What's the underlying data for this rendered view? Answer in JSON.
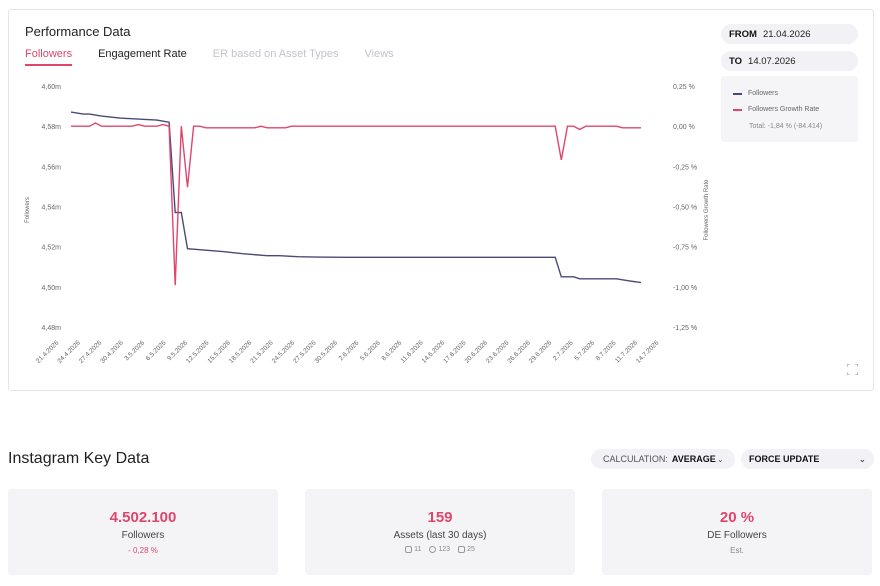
{
  "performance": {
    "title": "Performance Data",
    "tabs": [
      {
        "label": "Followers",
        "state": "active"
      },
      {
        "label": "Engagement Rate",
        "state": "dark"
      },
      {
        "label": "ER based on Asset Types",
        "state": "muted"
      },
      {
        "label": "Views",
        "state": "muted"
      }
    ],
    "from_label": "FROM",
    "from_value": "21.04.2026",
    "to_label": "TO",
    "to_value": "14.07.2026",
    "legend": {
      "followers": "Followers",
      "growth": "Followers Growth Rate",
      "total": "Total: -1,84 % (-84.414)"
    }
  },
  "chart_data": {
    "type": "line",
    "ylabel": "Followers",
    "y2label": "Followers Growth Rate",
    "x_ticks": [
      "21.4.2026",
      "24.4.2026",
      "27.4.2026",
      "30.4.2026",
      "3.5.2026",
      "6.5.2026",
      "9.5.2026",
      "12.5.2026",
      "15.5.2026",
      "18.5.2026",
      "21.5.2026",
      "24.5.2026",
      "27.5.2026",
      "30.5.2026",
      "2.6.2026",
      "5.6.2026",
      "8.6.2026",
      "11.6.2026",
      "14.6.2026",
      "17.6.2026",
      "20.6.2026",
      "23.6.2026",
      "26.6.2026",
      "29.6.2026",
      "2.7.2026",
      "5.7.2026",
      "8.7.2026",
      "11.7.2026",
      "14.7.2026"
    ],
    "y_ticks": [
      "4,60m",
      "4,58m",
      "4,56m",
      "4,54m",
      "4,52m",
      "4,50m",
      "4,48m"
    ],
    "y2_ticks": [
      "0,25 %",
      "0,00 %",
      "-0,25 %",
      "-0,50 %",
      "-0,75 %",
      "-1,00 %",
      "-1,25 %"
    ],
    "ylim": [
      4480000,
      4600000
    ],
    "y2lim": [
      -1.25,
      0.25
    ],
    "colors": {
      "followers": "#4a4a78",
      "growth": "#e0456c"
    },
    "series": [
      {
        "name": "Followers",
        "axis": "left",
        "points": [
          [
            0,
            4587000
          ],
          [
            2,
            4586000
          ],
          [
            3,
            4586000
          ],
          [
            5,
            4585000
          ],
          [
            8,
            4584000
          ],
          [
            11,
            4583500
          ],
          [
            14,
            4583000
          ],
          [
            16,
            4582000
          ],
          [
            17,
            4537000
          ],
          [
            18,
            4537000
          ],
          [
            19,
            4519000
          ],
          [
            21,
            4518500
          ],
          [
            25,
            4517500
          ],
          [
            28,
            4516500
          ],
          [
            32,
            4515500
          ],
          [
            34,
            4515500
          ],
          [
            37,
            4515000
          ],
          [
            40,
            4514800
          ],
          [
            45,
            4514700
          ],
          [
            50,
            4514700
          ],
          [
            60,
            4514700
          ],
          [
            70,
            4514700
          ],
          [
            79,
            4514700
          ],
          [
            80,
            4505000
          ],
          [
            82,
            4505000
          ],
          [
            83,
            4504000
          ],
          [
            86,
            4504000
          ],
          [
            89,
            4504000
          ],
          [
            91,
            4503000
          ],
          [
            93,
            4502100
          ]
        ]
      },
      {
        "name": "Followers Growth Rate",
        "axis": "right",
        "points": [
          [
            0,
            0
          ],
          [
            3,
            0
          ],
          [
            4,
            0.02
          ],
          [
            5,
            0
          ],
          [
            8,
            0
          ],
          [
            10,
            0
          ],
          [
            11,
            0.01
          ],
          [
            12,
            0
          ],
          [
            14,
            0
          ],
          [
            15,
            0.01
          ],
          [
            16,
            0
          ],
          [
            17,
            -0.99
          ],
          [
            18,
            0
          ],
          [
            19,
            -0.38
          ],
          [
            20,
            0
          ],
          [
            21,
            0
          ],
          [
            22,
            -0.01
          ],
          [
            30,
            -0.01
          ],
          [
            31,
            0
          ],
          [
            32,
            -0.01
          ],
          [
            35,
            -0.01
          ],
          [
            36,
            0
          ],
          [
            50,
            0
          ],
          [
            60,
            0
          ],
          [
            70,
            0
          ],
          [
            79,
            0
          ],
          [
            80,
            -0.21
          ],
          [
            81,
            0
          ],
          [
            82,
            0
          ],
          [
            83,
            -0.02
          ],
          [
            84,
            0
          ],
          [
            88,
            0
          ],
          [
            89,
            0
          ],
          [
            90,
            -0.01
          ],
          [
            93,
            -0.01
          ]
        ]
      }
    ]
  },
  "key_data": {
    "title": "Instagram Key Data",
    "calc_label": "CALCULATION:",
    "calc_value": "AVERAGE",
    "force_update": "FORCE UPDATE",
    "cards": [
      {
        "value": "4.502.100",
        "label": "Followers",
        "sub": "- 0,28 %"
      },
      {
        "value": "159",
        "label": "Assets (last 30 days)",
        "counts": [
          "11",
          "123",
          "25"
        ]
      },
      {
        "value": "20 %",
        "label": "DE Followers",
        "sub": "Est."
      }
    ]
  }
}
